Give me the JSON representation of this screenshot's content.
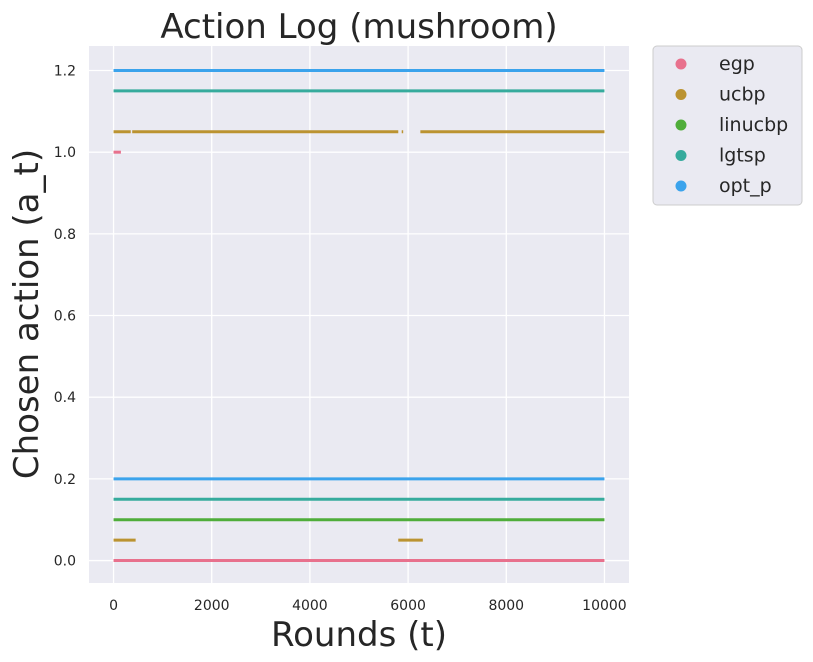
{
  "chart_data": {
    "type": "scatter",
    "title": "Action Log (mushroom)",
    "xlabel": "Rounds (t)",
    "ylabel": "Chosen action (a_t)",
    "xlim": [
      -500,
      10500
    ],
    "ylim": [
      -0.055,
      1.26
    ],
    "xticks": [
      0,
      2000,
      4000,
      6000,
      8000,
      10000
    ],
    "xtick_labels": [
      "0",
      "2000",
      "4000",
      "6000",
      "8000",
      "10000"
    ],
    "yticks": [
      0.0,
      0.2,
      0.4,
      0.6,
      0.8,
      1.0,
      1.2
    ],
    "ytick_labels": [
      "0.0",
      "0.2",
      "0.4",
      "0.6",
      "0.8",
      "1.0",
      "1.2"
    ],
    "grid": true,
    "legend_position": "outside-top-right",
    "series": [
      {
        "name": "egp",
        "color": "#e8718d",
        "segments": [
          {
            "y": 0.0,
            "x": [
              0,
              10000
            ]
          },
          {
            "y": 1.0,
            "x": [
              0,
              150
            ]
          }
        ]
      },
      {
        "name": "ucbp",
        "color": "#bb9331",
        "segments": [
          {
            "y": 0.05,
            "x": [
              0,
              450
            ]
          },
          {
            "y": 0.05,
            "x": [
              5800,
              6300
            ]
          },
          {
            "y": 1.05,
            "x": [
              0,
              350
            ]
          },
          {
            "y": 1.05,
            "x": [
              380,
              5800
            ]
          },
          {
            "y": 1.05,
            "x": [
              5870,
              5900
            ]
          },
          {
            "y": 1.05,
            "x": [
              6250,
              10000
            ]
          }
        ]
      },
      {
        "name": "linucbp",
        "color": "#4fad3a",
        "segments": [
          {
            "y": 0.1,
            "x": [
              0,
              10000
            ]
          }
        ]
      },
      {
        "name": "lgtsp",
        "color": "#36ab9d",
        "segments": [
          {
            "y": 0.15,
            "x": [
              0,
              10000
            ]
          },
          {
            "y": 1.15,
            "x": [
              0,
              10000
            ]
          }
        ]
      },
      {
        "name": "opt_p",
        "color": "#3ba3ec",
        "segments": [
          {
            "y": 0.2,
            "x": [
              0,
              10000
            ]
          },
          {
            "y": 1.2,
            "x": [
              0,
              10000
            ]
          }
        ]
      }
    ]
  }
}
